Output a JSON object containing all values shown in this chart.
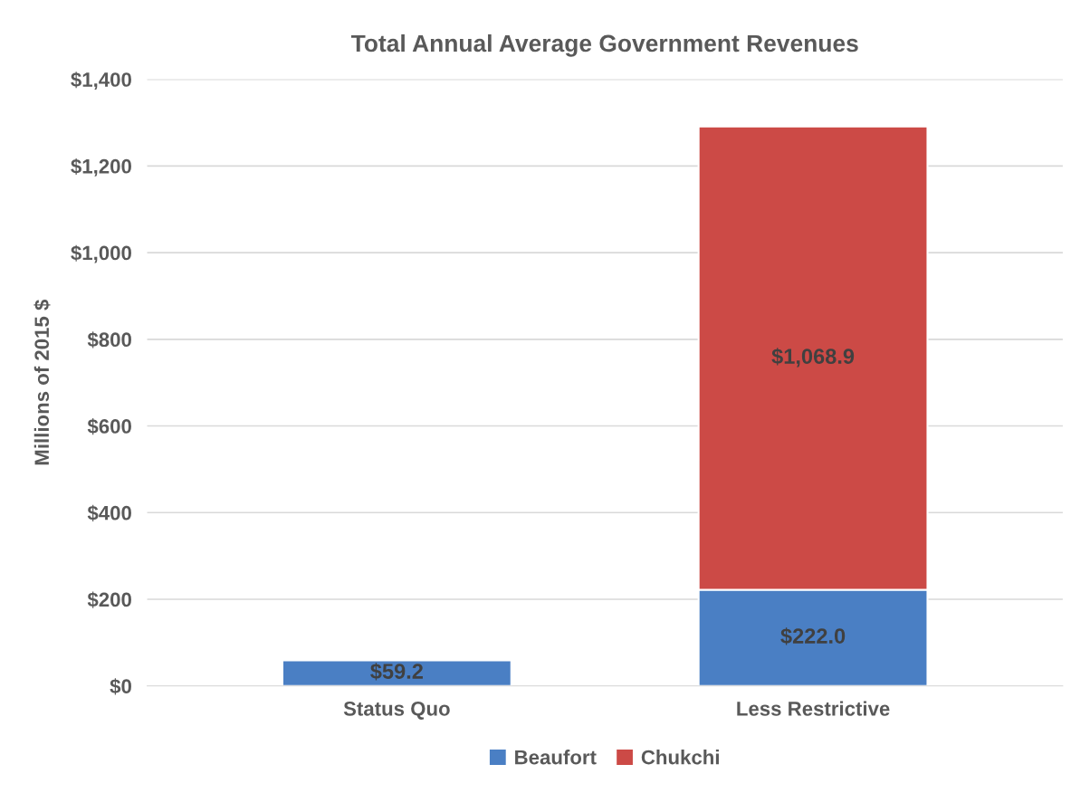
{
  "chart_data": {
    "type": "bar",
    "title": "Total Annual Average Government Revenues",
    "ylabel": "Millions of 2015 $",
    "categories": [
      "Status Quo",
      "Less Restrictive"
    ],
    "stacked": true,
    "series": [
      {
        "name": "Beaufort",
        "color": "#4a7fc4",
        "values": [
          59.2,
          222.0
        ],
        "value_labels": [
          "$59.2",
          "$222.0"
        ]
      },
      {
        "name": "Chukchi",
        "color": "#cc4a46",
        "values": [
          null,
          1068.9
        ],
        "value_labels": [
          null,
          "$1,068.9"
        ]
      }
    ],
    "ylim": [
      0,
      1400
    ],
    "yticks": [
      {
        "value": 0,
        "label": "$0"
      },
      {
        "value": 200,
        "label": "$200"
      },
      {
        "value": 400,
        "label": "$400"
      },
      {
        "value": 600,
        "label": "$600"
      },
      {
        "value": 800,
        "label": "$800"
      },
      {
        "value": 1000,
        "label": "$1,000"
      },
      {
        "value": 1200,
        "label": "$1,200"
      },
      {
        "value": 1400,
        "label": "$1,400"
      }
    ],
    "grid": "y",
    "legend": "bottom"
  }
}
